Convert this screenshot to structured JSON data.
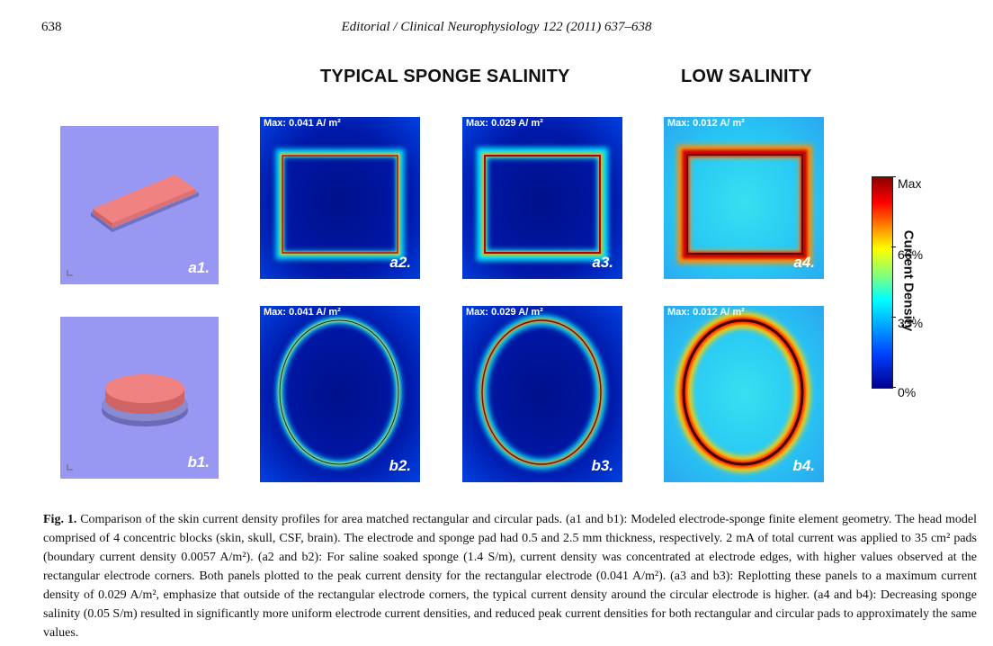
{
  "header": {
    "page_number": "638",
    "running_head": "Editorial / Clinical Neurophysiology 122 (2011) 637–638"
  },
  "section_titles": {
    "typical": "TYPICAL SPONGE SALINITY",
    "low": "LOW SALINITY"
  },
  "panels": {
    "a1": "a1.",
    "b1": "b1.",
    "a2": "a2.",
    "a3": "a3.",
    "a4": "a4.",
    "b2": "b2.",
    "b3": "b3.",
    "b4": "b4."
  },
  "max_labels": {
    "a2": "Max: 0.041 A/ m²",
    "a3": "Max: 0.029 A/ m²",
    "a4": "Max: 0.012 A/ m²",
    "b2": "Max: 0.041 A/ m²",
    "b3": "Max: 0.029 A/ m²",
    "b4": "Max: 0.012 A/ m²"
  },
  "colorbar": {
    "title": "Current Density",
    "labels": [
      "Max",
      "66%",
      "33%",
      "0%"
    ]
  },
  "caption": {
    "label": "Fig. 1.",
    "text": "Comparison of the skin current density profiles for area matched rectangular and circular pads. (a1 and b1): Modeled electrode-sponge finite element geometry. The head model comprised of 4 concentric blocks (skin, skull, CSF, brain). The electrode and sponge pad had 0.5 and 2.5 mm thickness, respectively. 2 mA of total current was applied to 35 cm² pads (boundary current density 0.0057 A/m²). (a2 and b2): For saline soaked sponge (1.4 S/m), current density was concentrated at electrode edges, with higher values observed at the rectangular electrode corners. Both panels plotted to the peak current density for the rectangular electrode (0.041 A/m²). (a3 and b3): Replotting these panels to a maximum current density of 0.029 A/m², emphasize that outside of the rectangular electrode corners, the typical current density around the circular electrode is higher. (a4 and b4): Decreasing sponge salinity (0.05 S/m) resulted in significantly more uniform electrode current densities, and reduced peak current densities for both rectangular and circular pads to approximately the same values."
  }
}
